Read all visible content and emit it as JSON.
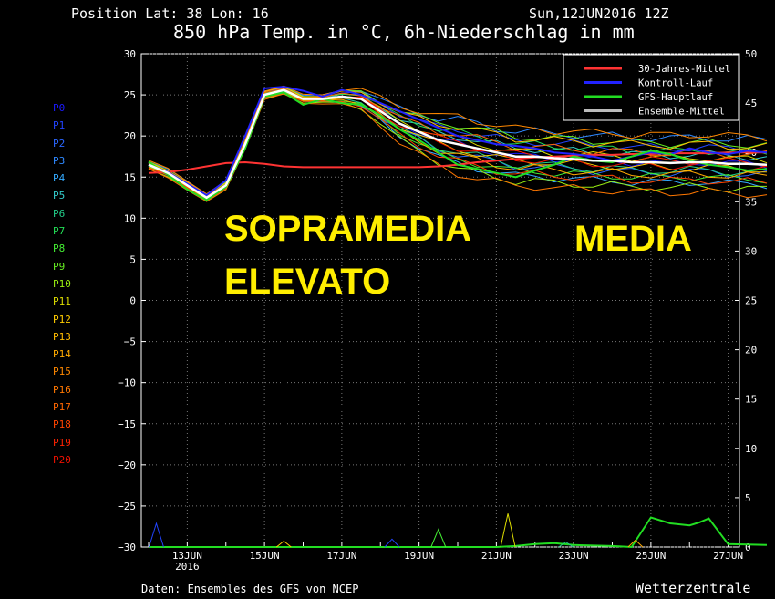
{
  "header": {
    "position": "Position  Lat: 38 Lon: 16",
    "run": "Sun,12JUN2016 12Z",
    "title": "850 hPa Temp. in °C, 6h-Niederschlag in mm"
  },
  "footer": {
    "source": "Daten: Ensembles des GFS von NCEP",
    "credit": "Wetterzentrale"
  },
  "annotations": {
    "above_avg_1": "SOPRAMEDIA",
    "above_avg_2": "ELEVATO",
    "average": "MEDIA"
  },
  "members": [
    {
      "label": "P0",
      "color": "#1a1aff"
    },
    {
      "label": "P1",
      "color": "#2244ff"
    },
    {
      "label": "P2",
      "color": "#2a66ff"
    },
    {
      "label": "P3",
      "color": "#2e88ff"
    },
    {
      "label": "P4",
      "color": "#33aaff"
    },
    {
      "label": "P5",
      "color": "#33cccc"
    },
    {
      "label": "P6",
      "color": "#22cc88"
    },
    {
      "label": "P7",
      "color": "#22dd55"
    },
    {
      "label": "P8",
      "color": "#44ee33"
    },
    {
      "label": "P9",
      "color": "#66ee22"
    },
    {
      "label": "P10",
      "color": "#99ee11"
    },
    {
      "label": "P11",
      "color": "#dddd00"
    },
    {
      "label": "P12",
      "color": "#ffcc00"
    },
    {
      "label": "P13",
      "color": "#ffbb00"
    },
    {
      "label": "P14",
      "color": "#ffaa00"
    },
    {
      "label": "P15",
      "color": "#ff8800"
    },
    {
      "label": "P16",
      "color": "#ff7700"
    },
    {
      "label": "P17",
      "color": "#ff6600"
    },
    {
      "label": "P18",
      "color": "#ff4400"
    },
    {
      "label": "P19",
      "color": "#ff2200"
    },
    {
      "label": "P20",
      "color": "#ee1100"
    }
  ],
  "chart_data": {
    "type": "line",
    "title": "850 hPa Temp. in °C, 6h-Niederschlag in mm",
    "x_ticks": [
      {
        "day": 1,
        "label": "13JUN",
        "sub": "2016"
      },
      {
        "day": 3,
        "label": "15JUN"
      },
      {
        "day": 5,
        "label": "17JUN"
      },
      {
        "day": 7,
        "label": "19JUN"
      },
      {
        "day": 9,
        "label": "21JUN"
      },
      {
        "day": 11,
        "label": "23JUN"
      },
      {
        "day": 13,
        "label": "25JUN"
      },
      {
        "day": 15,
        "label": "27JUN"
      }
    ],
    "x_range_days": [
      0,
      16
    ],
    "y_left": {
      "range": [
        -30,
        30
      ],
      "ticks": [
        "30",
        "25",
        "20",
        "15",
        "10",
        "5",
        "0",
        "−5",
        "−10",
        "−15",
        "−20",
        "−25",
        "−30"
      ]
    },
    "y_right": {
      "range": [
        0,
        50
      ],
      "ticks": [
        "50",
        "45",
        "40",
        "35",
        "30",
        "25",
        "20",
        "15",
        "10",
        "5",
        "0"
      ]
    },
    "grid": true,
    "legend_position": "top-right",
    "legend": [
      {
        "name": "30-Jahres-Mittel",
        "color": "#ff3333"
      },
      {
        "name": "Kontroll-Lauf",
        "color": "#2222ff"
      },
      {
        "name": "GFS-Hauptlauf",
        "color": "#22dd22"
      },
      {
        "name": "Ensemble-Mittel",
        "color": "#bbbbbb"
      }
    ],
    "temperature": {
      "x_days": [
        0.0,
        0.5,
        1.0,
        1.5,
        2.0,
        2.5,
        3.0,
        3.5,
        4.0,
        4.5,
        5.0,
        5.5,
        6.0,
        6.5,
        7.0,
        7.5,
        8.0,
        8.5,
        9.0,
        9.5,
        10.0,
        10.5,
        11.0,
        11.5,
        12.0,
        12.5,
        13.0,
        13.5,
        14.0,
        14.5,
        15.0,
        15.5,
        16.0
      ],
      "climatology": [
        15.5,
        15.6,
        15.9,
        16.3,
        16.7,
        16.8,
        16.6,
        16.3,
        16.2,
        16.2,
        16.2,
        16.2,
        16.2,
        16.2,
        16.2,
        16.3,
        16.5,
        16.8,
        17.0,
        17.2,
        17.4,
        17.5,
        17.6,
        17.7,
        17.7,
        17.8,
        17.8,
        17.9,
        17.9,
        17.9,
        18.0,
        18.0,
        18.0
      ],
      "ensemble_mean": [
        16.5,
        15.5,
        14.0,
        12.5,
        14.0,
        19.0,
        25.0,
        25.6,
        24.5,
        24.5,
        24.8,
        24.5,
        23.0,
        21.5,
        20.5,
        19.5,
        19.0,
        18.5,
        18.0,
        17.5,
        17.5,
        17.3,
        17.2,
        17.0,
        17.0,
        16.8,
        16.8,
        16.7,
        16.8,
        16.8,
        16.6,
        16.6,
        16.5
      ],
      "control_run": [
        16.5,
        15.6,
        14.2,
        12.8,
        14.6,
        20.0,
        25.8,
        26.0,
        25.5,
        24.8,
        25.6,
        25.0,
        24.0,
        23.0,
        22.0,
        21.0,
        20.0,
        19.5,
        19.0,
        18.8,
        18.5,
        18.0,
        17.8,
        17.5,
        17.0,
        17.5,
        18.0,
        17.8,
        18.5,
        18.0,
        17.8,
        18.2,
        18.0
      ],
      "gfs_main_run": [
        16.8,
        15.3,
        13.5,
        12.2,
        13.8,
        18.5,
        24.8,
        25.3,
        23.8,
        24.5,
        24.0,
        23.8,
        22.5,
        20.8,
        19.5,
        18.0,
        16.5,
        16.0,
        15.5,
        15.0,
        15.8,
        16.5,
        17.5,
        17.0,
        16.8,
        17.5,
        18.2,
        17.8,
        17.0,
        16.5,
        16.2,
        15.8,
        16.0
      ],
      "member_offsets": [
        0.0,
        1.5,
        -1.0,
        2.5,
        -2.0,
        0.8,
        -0.8,
        1.2,
        -1.5,
        2.0,
        -2.5,
        0.5,
        -0.5,
        1.8,
        -1.2,
        2.8,
        -3.0,
        1.0,
        -1.8,
        0.2,
        -0.3
      ]
    },
    "precipitation_mm": {
      "x_days": [
        0.0,
        0.25,
        0.5,
        1.0,
        1.5,
        2.0,
        3.0,
        4.0,
        5.0,
        6.0,
        6.5,
        7.0,
        7.5,
        8.0,
        8.5,
        9.0,
        9.5,
        10.0,
        10.5,
        11.0,
        12.0,
        12.5,
        13.0,
        13.5,
        14.0,
        14.25,
        14.5,
        15.0,
        16.0
      ],
      "gfs_main_run": [
        0,
        0,
        0,
        0,
        0,
        0,
        0,
        0,
        0,
        0,
        0,
        0,
        0,
        0,
        0,
        0,
        0.1,
        0.3,
        0.4,
        0.2,
        0.1,
        0,
        3.0,
        2.4,
        2.2,
        2.5,
        2.9,
        0.3,
        0.2
      ],
      "member_spikes": [
        {
          "x": 0.2,
          "mm": 2.4,
          "color": "#2244ff"
        },
        {
          "x": 3.5,
          "mm": 0.6,
          "color": "#ffcc00"
        },
        {
          "x": 6.3,
          "mm": 0.8,
          "color": "#2244ff"
        },
        {
          "x": 7.5,
          "mm": 1.8,
          "color": "#44ee33"
        },
        {
          "x": 9.3,
          "mm": 3.4,
          "color": "#dddd00"
        },
        {
          "x": 10.8,
          "mm": 0.5,
          "color": "#22cc88"
        },
        {
          "x": 12.6,
          "mm": 0.7,
          "color": "#ffaa00"
        }
      ]
    }
  }
}
